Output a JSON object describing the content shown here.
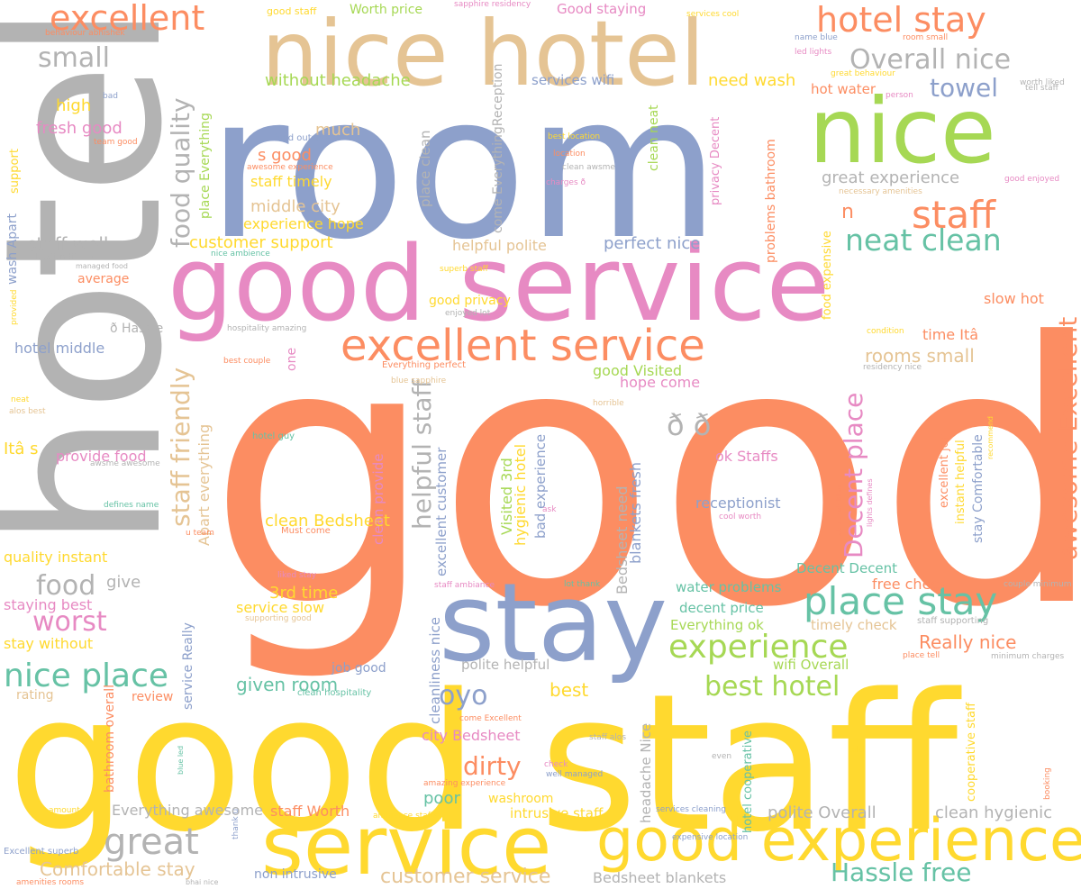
{
  "palette": {
    "coral": "#fc8d62",
    "yellow": "#ffd92f",
    "slate_blue": "#8da0cb",
    "gray": "#b3b3b3",
    "pink": "#e78ac3",
    "tan": "#e5c494",
    "green": "#a6d854",
    "teal": "#66c2a5",
    "background": "#ffffff"
  },
  "words": [
    {
      "text": "good",
      "color": "coral"
    },
    {
      "text": "room",
      "color": "slate_blue"
    },
    {
      "text": "hotel",
      "color": "gray"
    },
    {
      "text": "good staff",
      "color": "yellow"
    },
    {
      "text": "good service",
      "color": "pink"
    },
    {
      "text": "nice hotel",
      "color": "tan"
    },
    {
      "text": "nice",
      "color": "green"
    },
    {
      "text": "stay",
      "color": "slate_blue"
    },
    {
      "text": "service",
      "color": "yellow"
    },
    {
      "text": "good experience",
      "color": "yellow"
    },
    {
      "text": "excellent service",
      "color": "coral"
    },
    {
      "text": "place stay",
      "color": "teal"
    },
    {
      "text": "hotel stay",
      "color": "coral"
    },
    {
      "text": "excellent",
      "color": "coral"
    },
    {
      "text": "staff",
      "color": "coral"
    },
    {
      "text": "neat clean",
      "color": "teal"
    },
    {
      "text": "experience",
      "color": "green"
    },
    {
      "text": "nice place",
      "color": "teal"
    },
    {
      "text": "Overall nice",
      "color": "gray"
    },
    {
      "text": "small",
      "color": "gray"
    },
    {
      "text": "towel",
      "color": "slate_blue"
    },
    {
      "text": "great",
      "color": "gray"
    },
    {
      "text": "food",
      "color": "gray"
    },
    {
      "text": "worst",
      "color": "pink"
    },
    {
      "text": "oyo",
      "color": "slate_blue"
    },
    {
      "text": "best hotel",
      "color": "green"
    },
    {
      "text": "Hassle free",
      "color": "teal"
    },
    {
      "text": "customer service",
      "color": "tan"
    },
    {
      "text": "Comfortable stay",
      "color": "tan"
    },
    {
      "text": "dirty",
      "color": "coral"
    },
    {
      "text": "Decent place",
      "color": "pink"
    },
    {
      "text": "awesome Excellent",
      "color": "coral"
    },
    {
      "text": "staff friendly",
      "color": "tan"
    },
    {
      "text": "helpful staff",
      "color": "gray"
    },
    {
      "text": "food quality",
      "color": "gray"
    },
    {
      "text": "Really nice",
      "color": "coral"
    },
    {
      "text": "without headache",
      "color": "green"
    },
    {
      "text": "fresh good",
      "color": "pink"
    },
    {
      "text": "high",
      "color": "yellow"
    },
    {
      "text": "staff well",
      "color": "gray"
    },
    {
      "text": "customer support",
      "color": "yellow"
    },
    {
      "text": "s good",
      "color": "coral"
    },
    {
      "text": "staff timely",
      "color": "yellow"
    },
    {
      "text": "middle city",
      "color": "tan"
    },
    {
      "text": "experience hope",
      "color": "yellow"
    },
    {
      "text": "much",
      "color": "tan"
    },
    {
      "text": "need wash",
      "color": "yellow"
    },
    {
      "text": "hot water",
      "color": "coral"
    },
    {
      "text": "great experience",
      "color": "gray"
    },
    {
      "text": "perfect nice",
      "color": "slate_blue"
    },
    {
      "text": "helpful polite",
      "color": "tan"
    },
    {
      "text": "rooms small",
      "color": "tan"
    },
    {
      "text": "time Itâ",
      "color": "coral"
    },
    {
      "text": "slow hot",
      "color": "coral"
    },
    {
      "text": "good privacy",
      "color": "yellow"
    },
    {
      "text": "hotel middle",
      "color": "slate_blue"
    },
    {
      "text": "ð Hassle",
      "color": "gray"
    },
    {
      "text": "average",
      "color": "coral"
    },
    {
      "text": "Itâ s",
      "color": "yellow"
    },
    {
      "text": "provide food",
      "color": "pink"
    },
    {
      "text": "quality instant",
      "color": "yellow"
    },
    {
      "text": "give",
      "color": "gray"
    },
    {
      "text": "staying best",
      "color": "pink"
    },
    {
      "text": "stay without",
      "color": "yellow"
    },
    {
      "text": "clean Bedsheet",
      "color": "yellow"
    },
    {
      "text": "3rd time",
      "color": "yellow"
    },
    {
      "text": "service slow",
      "color": "yellow"
    },
    {
      "text": "good Visited",
      "color": "green"
    },
    {
      "text": "hope come",
      "color": "pink"
    },
    {
      "text": "ok Staffs",
      "color": "pink"
    },
    {
      "text": "receptionist",
      "color": "slate_blue"
    },
    {
      "text": "water problems",
      "color": "teal"
    },
    {
      "text": "decent price",
      "color": "teal"
    },
    {
      "text": "Everything ok",
      "color": "green"
    },
    {
      "text": "timely check",
      "color": "tan"
    },
    {
      "text": "free check",
      "color": "coral"
    },
    {
      "text": "Decent Decent",
      "color": "teal"
    },
    {
      "text": "wifi Overall",
      "color": "green"
    },
    {
      "text": "given room",
      "color": "teal"
    },
    {
      "text": "job good",
      "color": "slate_blue"
    },
    {
      "text": "polite helpful",
      "color": "gray"
    },
    {
      "text": "best",
      "color": "yellow"
    },
    {
      "text": "review",
      "color": "coral"
    },
    {
      "text": "rating",
      "color": "tan"
    },
    {
      "text": "city Bedsheet",
      "color": "pink"
    },
    {
      "text": "poor",
      "color": "teal"
    },
    {
      "text": "washroom",
      "color": "yellow"
    },
    {
      "text": "intrusive staff",
      "color": "yellow"
    },
    {
      "text": "staff Worth",
      "color": "coral"
    },
    {
      "text": "Everything awesome",
      "color": "gray"
    },
    {
      "text": "polite Overall",
      "color": "gray"
    },
    {
      "text": "clean hygienic",
      "color": "gray"
    },
    {
      "text": "non intrusive",
      "color": "slate_blue"
    },
    {
      "text": "Bedsheet blankets",
      "color": "gray"
    },
    {
      "text": "Worth price",
      "color": "green"
    },
    {
      "text": "Good staying",
      "color": "pink"
    },
    {
      "text": "services wifi",
      "color": "slate_blue"
    },
    {
      "text": "place Everything",
      "color": "green"
    },
    {
      "text": "wash Apart",
      "color": "slate_blue"
    },
    {
      "text": "n",
      "color": "coral"
    },
    {
      "text": "ð ð",
      "color": "gray"
    },
    {
      "text": "one",
      "color": "pink"
    },
    {
      "text": "Apart everything",
      "color": "tan"
    },
    {
      "text": "service Really",
      "color": "slate_blue"
    },
    {
      "text": "bathroom overall",
      "color": "coral"
    },
    {
      "text": "cleanliness nice",
      "color": "slate_blue"
    },
    {
      "text": "excellent customer",
      "color": "slate_blue"
    },
    {
      "text": "clean provide",
      "color": "pink"
    },
    {
      "text": "Visited 3rd",
      "color": "green"
    },
    {
      "text": "hygienic hotel",
      "color": "yellow"
    },
    {
      "text": "bad experience",
      "color": "slate_blue"
    },
    {
      "text": "Bedsheet need",
      "color": "gray"
    },
    {
      "text": "blankets fresh",
      "color": "slate_blue"
    },
    {
      "text": "headache Nice",
      "color": "gray"
    },
    {
      "text": "hotel cooperative",
      "color": "teal"
    },
    {
      "text": "cooperative staff",
      "color": "yellow"
    },
    {
      "text": "stay Comfortable",
      "color": "slate_blue"
    },
    {
      "text": "instant helpful",
      "color": "yellow"
    },
    {
      "text": "excellent job",
      "color": "coral"
    },
    {
      "text": "privacy Decent",
      "color": "pink"
    },
    {
      "text": "clean neat",
      "color": "green"
    },
    {
      "text": "problems bathroom",
      "color": "coral"
    },
    {
      "text": "food expensive",
      "color": "yellow"
    },
    {
      "text": "place clean",
      "color": "gray"
    },
    {
      "text": "come EverythingReception",
      "color": "gray"
    },
    {
      "text": "support",
      "color": "yellow"
    },
    {
      "text": "good staff",
      "color": "yellow"
    },
    {
      "text": "sapphire residency",
      "color": "pink"
    },
    {
      "text": "services cool",
      "color": "yellow"
    },
    {
      "text": "name blue",
      "color": "slate_blue"
    },
    {
      "text": "room small",
      "color": "coral"
    },
    {
      "text": "led lights",
      "color": "pink"
    },
    {
      "text": "great behaviour",
      "color": "yellow"
    },
    {
      "text": "worth liked",
      "color": "gray"
    },
    {
      "text": "tell staff",
      "color": "gray"
    },
    {
      "text": "person",
      "color": "pink"
    },
    {
      "text": "behaviour abhishek",
      "color": "coral"
    },
    {
      "text": "bad",
      "color": "slate_blue"
    },
    {
      "text": "team good",
      "color": "coral"
    },
    {
      "text": "food outside",
      "color": "slate_blue"
    },
    {
      "text": "awesome experience",
      "color": "coral"
    },
    {
      "text": "best location",
      "color": "yellow"
    },
    {
      "text": "location",
      "color": "coral"
    },
    {
      "text": "clean awsme",
      "color": "gray"
    },
    {
      "text": "charges ð",
      "color": "pink"
    },
    {
      "text": "good enjoyed",
      "color": "pink"
    },
    {
      "text": "necessary amenities",
      "color": "tan"
    },
    {
      "text": "location difficult",
      "color": "gray"
    },
    {
      "text": "managed food",
      "color": "gray"
    },
    {
      "text": "nice ambience",
      "color": "teal"
    },
    {
      "text": "superb staff",
      "color": "yellow"
    },
    {
      "text": "enjoyed lot",
      "color": "gray"
    },
    {
      "text": "hospitality amazing",
      "color": "gray"
    },
    {
      "text": "condition",
      "color": "yellow"
    },
    {
      "text": "best couple",
      "color": "coral"
    },
    {
      "text": "residency nice",
      "color": "gray"
    },
    {
      "text": "Everything perfect",
      "color": "coral"
    },
    {
      "text": "blue sapphire",
      "color": "tan"
    },
    {
      "text": "horrible",
      "color": "tan"
    },
    {
      "text": "provided",
      "color": "yellow"
    },
    {
      "text": "neat",
      "color": "yellow"
    },
    {
      "text": "alos best",
      "color": "tan"
    },
    {
      "text": "hotel guy",
      "color": "teal"
    },
    {
      "text": "awsme awesome",
      "color": "gray"
    },
    {
      "text": "defines name",
      "color": "teal"
    },
    {
      "text": "u team",
      "color": "coral"
    },
    {
      "text": "ask",
      "color": "pink"
    },
    {
      "text": "cool worth",
      "color": "pink"
    },
    {
      "text": "abhishek bhai",
      "color": "coral"
    },
    {
      "text": "lights defines",
      "color": "pink"
    },
    {
      "text": "recommend",
      "color": "yellow"
    },
    {
      "text": "Must come",
      "color": "coral"
    },
    {
      "text": "liked stay",
      "color": "pink"
    },
    {
      "text": "staff ambiance",
      "color": "pink"
    },
    {
      "text": "lot thank",
      "color": "teal"
    },
    {
      "text": "supporting good",
      "color": "tan"
    },
    {
      "text": "staff supporting",
      "color": "gray"
    },
    {
      "text": "couple minimum",
      "color": "gray"
    },
    {
      "text": "place tell",
      "color": "coral"
    },
    {
      "text": "minimum charges",
      "color": "gray"
    },
    {
      "text": "clean hospitality",
      "color": "teal"
    },
    {
      "text": "come Excellent",
      "color": "coral"
    },
    {
      "text": "staff alos",
      "color": "gray"
    },
    {
      "text": "check",
      "color": "pink"
    },
    {
      "text": "well managed",
      "color": "slate_blue"
    },
    {
      "text": "amazing experience",
      "color": "coral"
    },
    {
      "text": "even",
      "color": "gray"
    },
    {
      "text": "told",
      "color": "yellow"
    },
    {
      "text": "booking",
      "color": "coral"
    },
    {
      "text": "blue led",
      "color": "teal"
    },
    {
      "text": "amount",
      "color": "yellow"
    },
    {
      "text": "ambience staffs",
      "color": "yellow"
    },
    {
      "text": "services cleaning",
      "color": "slate_blue"
    },
    {
      "text": "expensive location",
      "color": "slate_blue"
    },
    {
      "text": "thank u",
      "color": "slate_blue"
    },
    {
      "text": "Excellent superb",
      "color": "slate_blue"
    },
    {
      "text": "amenities rooms",
      "color": "coral"
    },
    {
      "text": "bhai nice",
      "color": "gray"
    }
  ]
}
